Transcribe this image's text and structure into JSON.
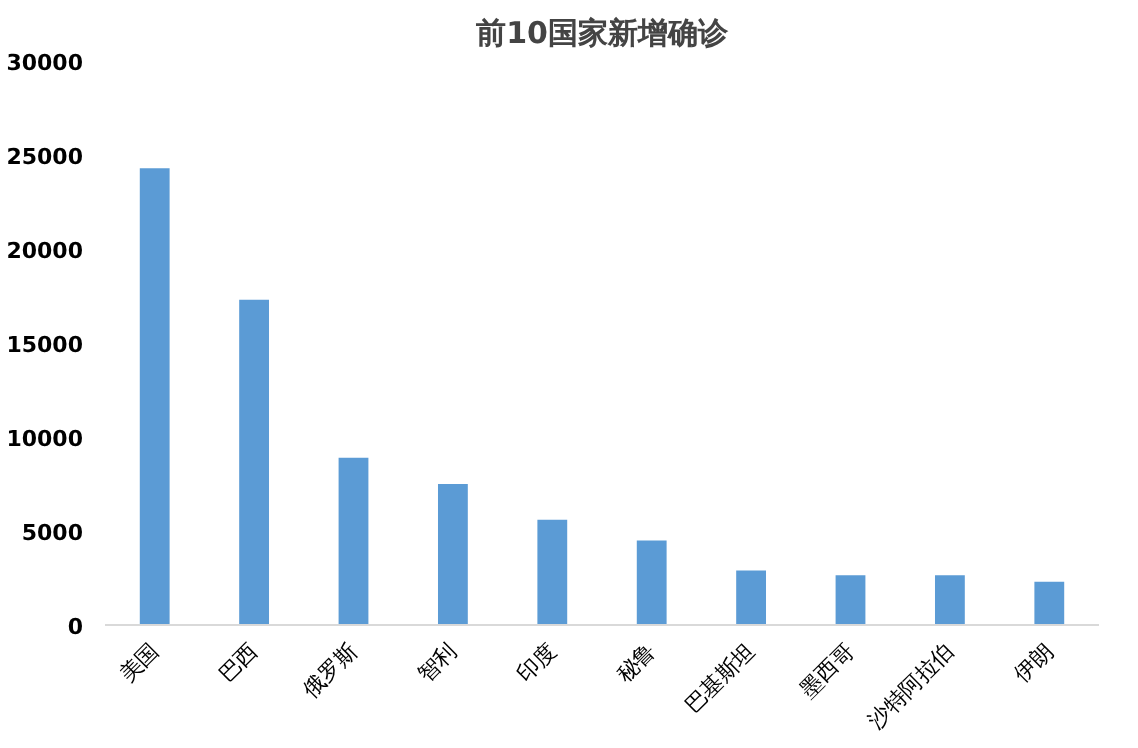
{
  "chart_data": {
    "type": "bar",
    "title": "前10国家新增确诊",
    "categories": [
      "美国",
      "巴西",
      "俄罗斯",
      "智利",
      "印度",
      "秘鲁",
      "巴基斯坦",
      "墨西哥",
      "沙特阿拉伯",
      "伊朗"
    ],
    "values": [
      24300,
      17300,
      8900,
      7500,
      5600,
      4500,
      2900,
      2650,
      2650,
      2300
    ],
    "color": "#5b9bd5",
    "ylim": [
      0,
      30000
    ],
    "yticks": [
      0,
      5000,
      10000,
      15000,
      20000,
      25000,
      30000
    ],
    "grid": false
  }
}
